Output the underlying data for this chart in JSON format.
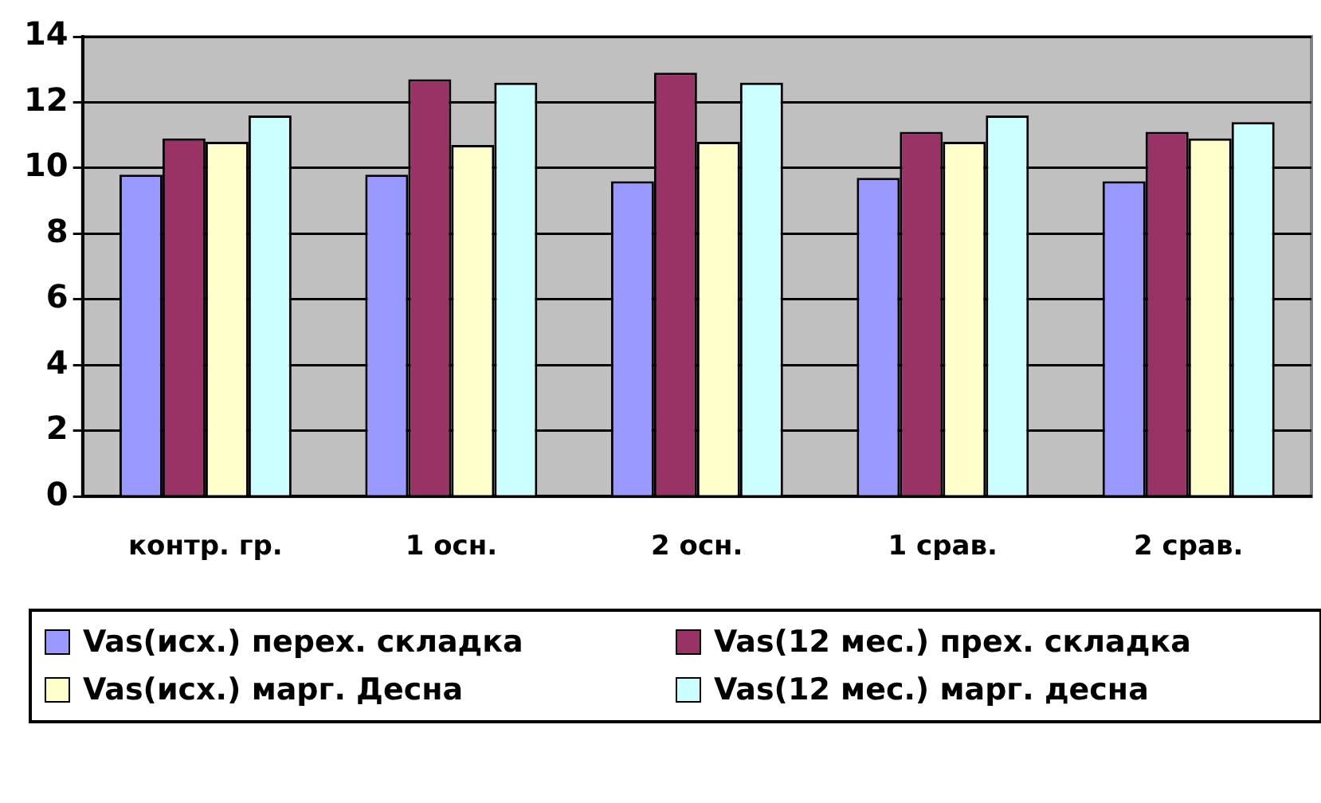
{
  "chart_data": {
    "type": "bar",
    "categories": [
      "контр. гр.",
      "1 осн.",
      "2 осн.",
      "1 срав.",
      "2 срав."
    ],
    "series": [
      {
        "name": "Vas(исх.) перех. складка",
        "color": "#9999ff",
        "values": [
          9.8,
          9.8,
          9.6,
          9.7,
          9.6
        ]
      },
      {
        "name": "Vas(12 мес.) прех. складка",
        "color": "#993366",
        "values": [
          10.9,
          12.7,
          12.9,
          11.1,
          11.1
        ]
      },
      {
        "name": "Vas(исх.) марг. Десна",
        "color": "#ffffcc",
        "values": [
          10.8,
          10.7,
          10.8,
          10.8,
          10.9
        ]
      },
      {
        "name": "Vas(12 мес.) марг. десна",
        "color": "#ccffff",
        "values": [
          11.6,
          12.6,
          12.6,
          11.6,
          11.4
        ]
      }
    ],
    "ylim": [
      0,
      14
    ],
    "yticks": [
      0,
      2,
      4,
      6,
      8,
      10,
      12,
      14
    ],
    "grid": "y",
    "legend": "bottom"
  }
}
